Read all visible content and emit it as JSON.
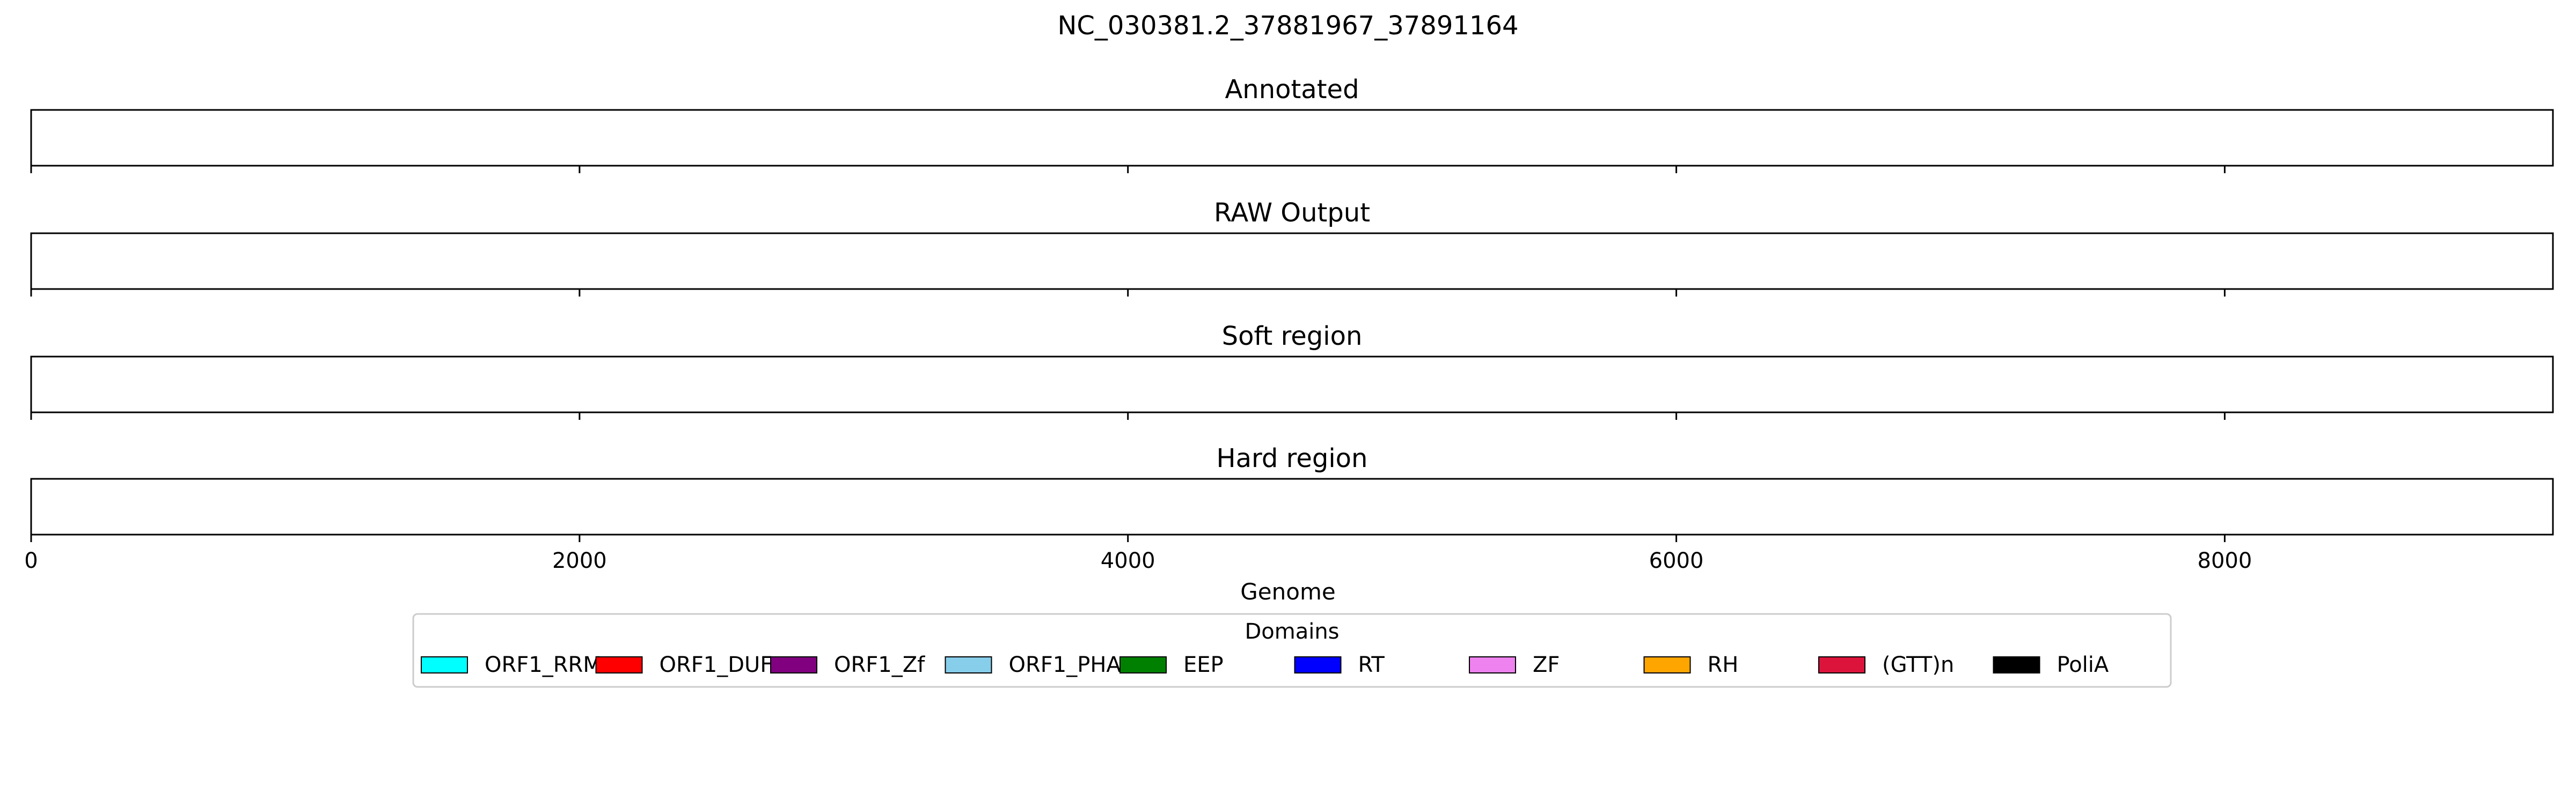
{
  "chart_data": {
    "type": "genome-track",
    "title": "NC_030381.2_37881967_37891164",
    "xlabel": "Genome",
    "xlim": [
      0,
      9197
    ],
    "xticks": [
      0,
      2000,
      4000,
      6000,
      8000
    ],
    "panels": [
      {
        "title": "Annotated",
        "segments": []
      },
      {
        "title": "RAW Output",
        "segments": []
      },
      {
        "title": "Soft region",
        "segments": []
      },
      {
        "title": "Hard region",
        "segments": []
      }
    ],
    "legend": {
      "title": "Domains",
      "placement": "bottom-center",
      "items": [
        {
          "label": "ORF1_RRM",
          "color": "#00ffff"
        },
        {
          "label": "ORF1_DUF",
          "color": "#ff0000"
        },
        {
          "label": "ORF1_Zf",
          "color": "#800080"
        },
        {
          "label": "ORF1_PHA",
          "color": "#87ceeb"
        },
        {
          "label": "EEP",
          "color": "#008000"
        },
        {
          "label": "RT",
          "color": "#0000ff"
        },
        {
          "label": "ZF",
          "color": "#ee82ee"
        },
        {
          "label": "RH",
          "color": "#ffa500"
        },
        {
          "label": "(GTT)n",
          "color": "#dc143c"
        },
        {
          "label": "PoliA",
          "color": "#000000"
        }
      ]
    }
  }
}
